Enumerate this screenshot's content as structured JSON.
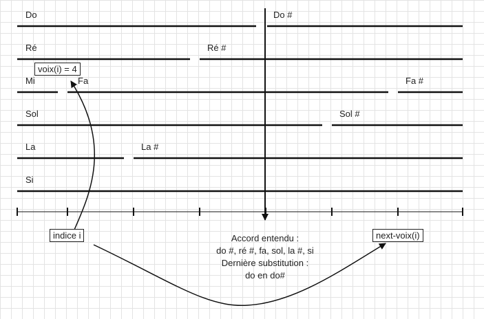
{
  "rows": [
    {
      "note": "Do",
      "sharp": "Do #"
    },
    {
      "note": "Ré",
      "sharp": "Ré #"
    },
    {
      "note": "Mi",
      "sharp": ""
    },
    {
      "note": "Fa",
      "sharp": "Fa #"
    },
    {
      "note": "Sol",
      "sharp": "Sol #"
    },
    {
      "note": "La",
      "sharp": "La #"
    },
    {
      "note": "Si",
      "sharp": ""
    }
  ],
  "boxes": {
    "voix": "voix(i) = 4",
    "indice": "indice i",
    "next": "next-voix(i)"
  },
  "annotation": {
    "line1": "Accord entendu :",
    "line2": "do #, ré #, fa, sol, la #, si",
    "line3": "Dernière substitution :",
    "line4": "do en do#"
  }
}
